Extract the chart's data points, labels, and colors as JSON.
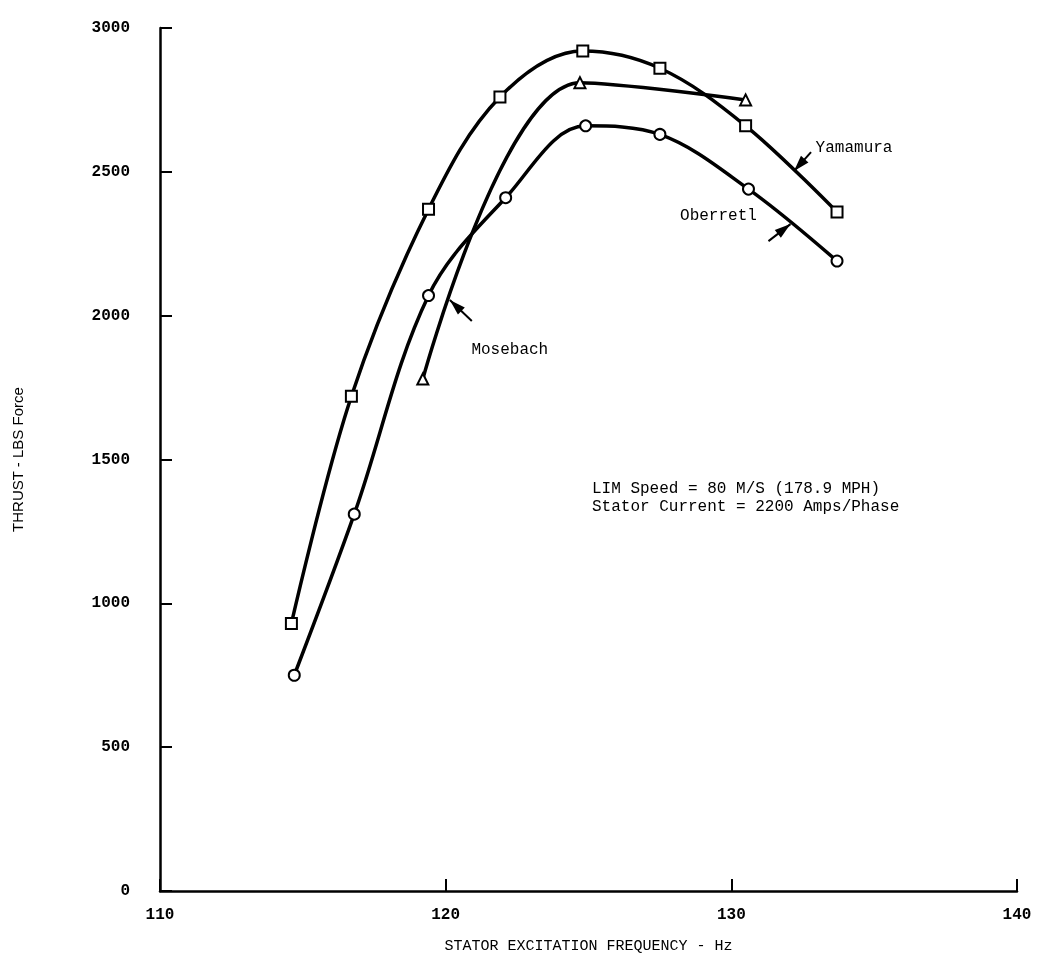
{
  "chart_data": {
    "type": "line",
    "xlabel": "STATOR EXCITATION FREQUENCY - Hz",
    "ylabel": "THRUST - LBS Force",
    "xlim": [
      110,
      140
    ],
    "xticks": [
      110,
      120,
      130,
      140
    ],
    "ylim": [
      0,
      3000
    ],
    "yticks": [
      0,
      500,
      1000,
      1500,
      2000,
      2500,
      3000
    ],
    "grid": false,
    "legend": false,
    "line_style": "solid",
    "annotations": [
      "LIM Speed = 80 M/S (178.9 MPH)",
      "Stator Current = 2200 Amps/Phase"
    ],
    "series": [
      {
        "name": "Yamamura",
        "color": "#000000",
        "marker": "square",
        "x": [
          114.6,
          116.7,
          119.4,
          121.9,
          124.8,
          127.5,
          130.5,
          133.7
        ],
        "values": [
          930,
          1720,
          2370,
          2760,
          2920,
          2860,
          2660,
          2360
        ]
      },
      {
        "name": "Oberretl",
        "color": "#000000",
        "marker": "circle",
        "x": [
          114.7,
          116.8,
          119.4,
          122.1,
          124.9,
          127.5,
          130.6,
          133.7
        ],
        "values": [
          750,
          1310,
          2070,
          2410,
          2660,
          2630,
          2440,
          2190
        ]
      },
      {
        "name": "Mosebach",
        "color": "#000000",
        "marker": "triangle",
        "x": [
          119.2,
          124.7,
          130.5
        ],
        "values": [
          1780,
          2810,
          2750
        ]
      }
    ]
  }
}
